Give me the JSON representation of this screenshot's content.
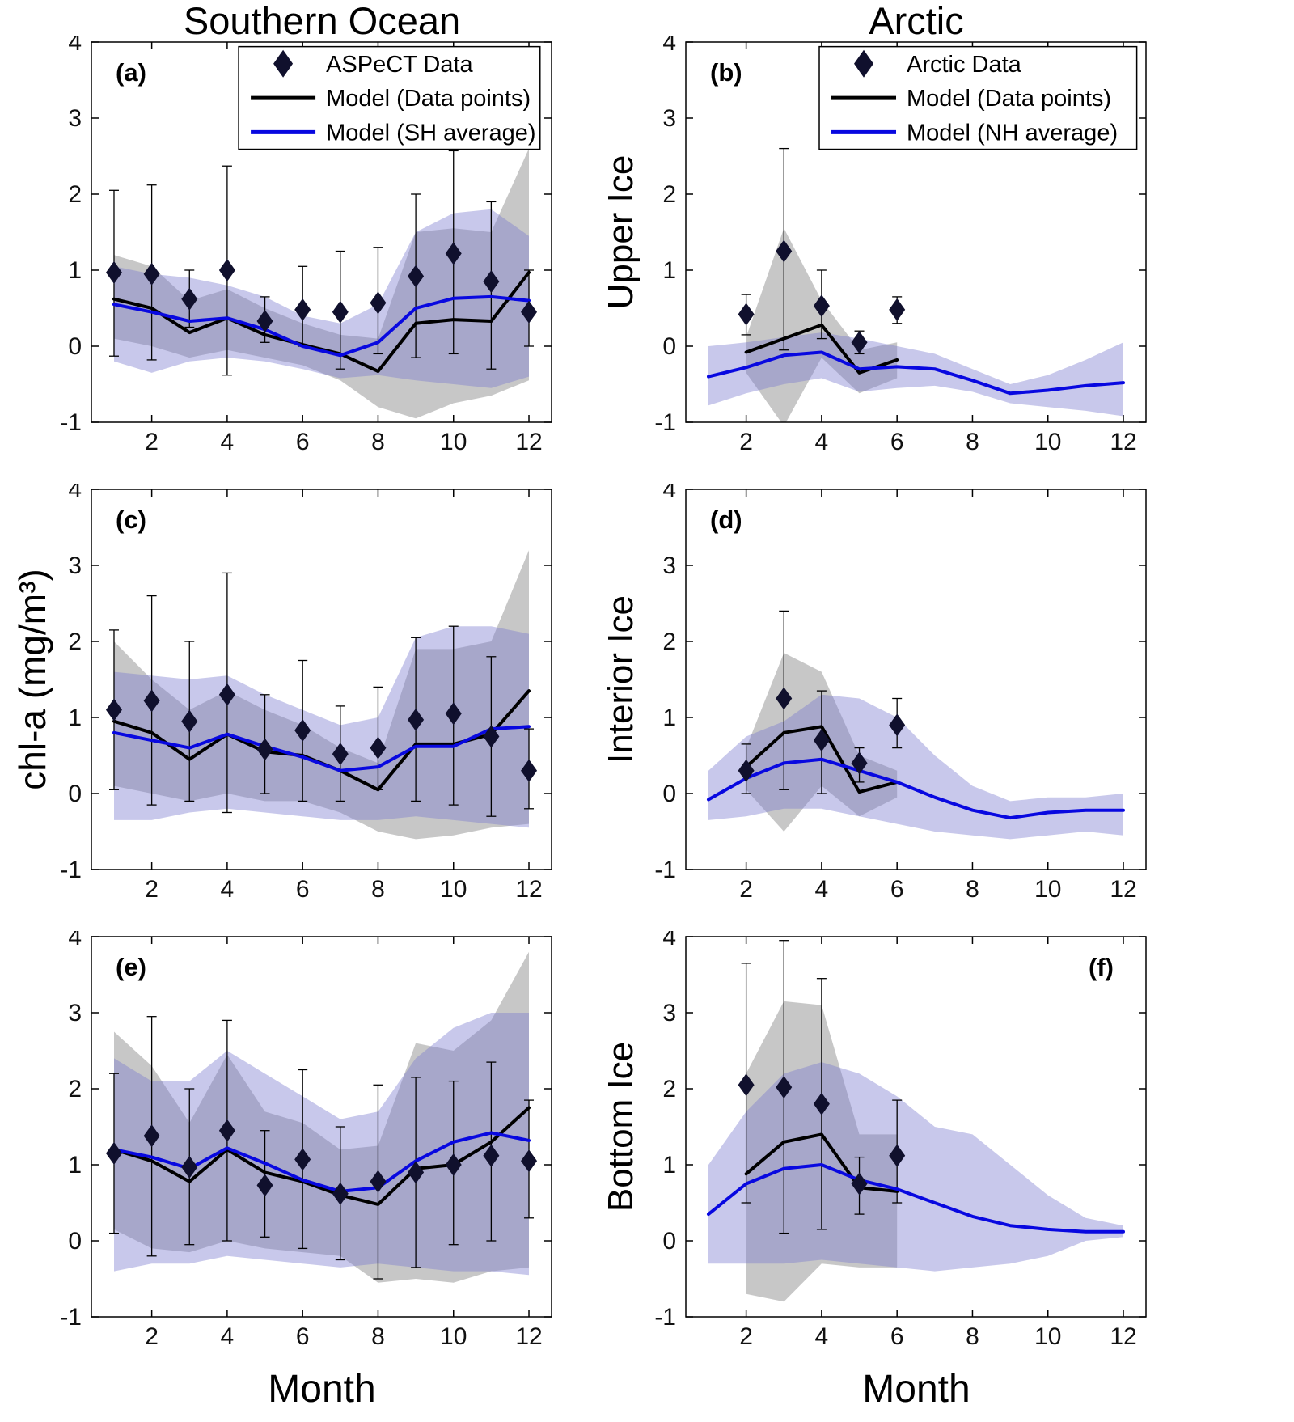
{
  "figure": {
    "titles": {
      "left": "Southern Ocean",
      "right": "Arctic"
    },
    "ylabel": "chl-a (mg/m³)",
    "xlabel": "Month",
    "row_labels": [
      "Upper Ice",
      "Interior Ice",
      "Bottom Ice"
    ],
    "colors": {
      "model_line": "#000000",
      "avg_line": "#0808e0",
      "diamond": "#10102d",
      "gray_band": "#909090",
      "blue_band": "#7b7bd0",
      "axis": "#000000"
    }
  },
  "chart_data": [
    {
      "id": "a",
      "type": "line",
      "panel": "Southern Ocean - Upper Ice",
      "letter": "(a)",
      "letter_pos": "tl",
      "xlim": [
        0.4,
        12.6
      ],
      "ylim": [
        -1,
        4
      ],
      "xticks": [
        2,
        4,
        6,
        8,
        10,
        12
      ],
      "yticks": [
        -1,
        0,
        1,
        2,
        3,
        4
      ],
      "legend": {
        "box": [
          0.32,
          0.012,
          0.655,
          0.27
        ],
        "entries": [
          {
            "marker": "diamond",
            "label": "ASPeCT Data"
          },
          {
            "marker": "line-black",
            "label": "Model (Data points)"
          },
          {
            "marker": "line-blue",
            "label": "Model (SH average)"
          }
        ]
      },
      "obs": {
        "x": [
          1,
          2,
          3,
          4,
          5,
          6,
          7,
          8,
          9,
          10,
          11,
          12
        ],
        "y": [
          0.97,
          0.95,
          0.62,
          1.0,
          0.33,
          0.48,
          0.45,
          0.57,
          0.92,
          1.22,
          0.85,
          0.45
        ],
        "err_hi": [
          2.05,
          2.12,
          1.0,
          2.37,
          0.65,
          1.05,
          1.25,
          1.3,
          2.0,
          2.57,
          1.9,
          1.0
        ],
        "err_lo": [
          -0.13,
          -0.18,
          0.25,
          -0.38,
          0.05,
          0.0,
          -0.3,
          -0.1,
          -0.15,
          -0.1,
          -0.3,
          0.0
        ]
      },
      "model": {
        "x": [
          1,
          2,
          3,
          4,
          5,
          6,
          7,
          8,
          9,
          10,
          11,
          12
        ],
        "y": [
          0.62,
          0.5,
          0.18,
          0.37,
          0.15,
          0.02,
          -0.1,
          -0.33,
          0.3,
          0.35,
          0.33,
          0.97
        ]
      },
      "avg": {
        "x": [
          1,
          2,
          3,
          4,
          5,
          6,
          7,
          8,
          9,
          10,
          11,
          12
        ],
        "y": [
          0.55,
          0.45,
          0.33,
          0.37,
          0.22,
          0.0,
          -0.12,
          0.05,
          0.5,
          0.63,
          0.65,
          0.6
        ]
      },
      "gray_band": {
        "x": [
          1,
          2,
          3,
          4,
          5,
          6,
          7,
          8,
          9,
          10,
          11,
          12
        ],
        "hi": [
          1.2,
          1.05,
          0.6,
          0.75,
          0.5,
          0.3,
          0.15,
          0.1,
          1.5,
          1.55,
          1.5,
          2.6
        ],
        "lo": [
          0.1,
          0.0,
          -0.15,
          -0.05,
          -0.15,
          -0.25,
          -0.45,
          -0.8,
          -0.95,
          -0.75,
          -0.65,
          -0.45
        ]
      },
      "blue_band": {
        "x": [
          1,
          2,
          3,
          4,
          5,
          6,
          7,
          8,
          9,
          10,
          11,
          12
        ],
        "hi": [
          1.05,
          0.95,
          0.9,
          0.8,
          0.65,
          0.4,
          0.3,
          0.55,
          1.5,
          1.75,
          1.8,
          1.45
        ],
        "lo": [
          -0.2,
          -0.35,
          -0.2,
          -0.15,
          -0.2,
          -0.3,
          -0.42,
          -0.38,
          -0.45,
          -0.5,
          -0.55,
          -0.4
        ]
      }
    },
    {
      "id": "b",
      "type": "line",
      "panel": "Arctic - Upper Ice",
      "letter": "(b)",
      "letter_pos": "tl",
      "xlim": [
        0.4,
        12.6
      ],
      "ylim": [
        -1,
        4
      ],
      "xticks": [
        2,
        4,
        6,
        8,
        10,
        12
      ],
      "yticks": [
        -1,
        0,
        1,
        2,
        3,
        4
      ],
      "legend": {
        "box": [
          0.29,
          0.012,
          0.69,
          0.27
        ],
        "entries": [
          {
            "marker": "diamond",
            "label": "Arctic Data"
          },
          {
            "marker": "line-black",
            "label": "Model (Data points)"
          },
          {
            "marker": "line-blue",
            "label": "Model (NH average)"
          }
        ]
      },
      "obs": {
        "x": [
          2,
          3,
          4,
          5,
          6
        ],
        "y": [
          0.42,
          1.25,
          0.53,
          0.05,
          0.48
        ],
        "err_hi": [
          0.68,
          2.6,
          1.0,
          0.2,
          0.65
        ],
        "err_lo": [
          0.15,
          -0.05,
          0.1,
          -0.1,
          0.3
        ]
      },
      "model": {
        "x": [
          2,
          3,
          4,
          5,
          6
        ],
        "y": [
          -0.08,
          0.1,
          0.28,
          -0.35,
          -0.18
        ]
      },
      "avg": {
        "x": [
          1,
          2,
          3,
          4,
          5,
          6,
          7,
          8,
          9,
          10,
          11,
          12
        ],
        "y": [
          -0.4,
          -0.28,
          -0.12,
          -0.08,
          -0.3,
          -0.27,
          -0.3,
          -0.45,
          -0.62,
          -0.58,
          -0.52,
          -0.48
        ]
      },
      "gray_band": {
        "x": [
          2,
          3,
          4,
          5,
          6
        ],
        "hi": [
          0.12,
          1.55,
          0.6,
          -0.05,
          0.05
        ],
        "lo": [
          -0.35,
          -1.05,
          -0.15,
          -0.62,
          -0.42
        ]
      },
      "blue_band": {
        "x": [
          1,
          2,
          3,
          4,
          5,
          6,
          7,
          8,
          9,
          10,
          11,
          12
        ],
        "hi": [
          0.0,
          0.05,
          0.12,
          0.18,
          0.1,
          0.0,
          -0.1,
          -0.3,
          -0.5,
          -0.38,
          -0.18,
          0.05
        ],
        "lo": [
          -0.78,
          -0.62,
          -0.5,
          -0.42,
          -0.6,
          -0.55,
          -0.52,
          -0.6,
          -0.75,
          -0.8,
          -0.85,
          -0.92
        ]
      }
    },
    {
      "id": "c",
      "type": "line",
      "panel": "Southern Ocean - Interior Ice",
      "letter": "(c)",
      "letter_pos": "tl",
      "xlim": [
        0.4,
        12.6
      ],
      "ylim": [
        -1,
        4
      ],
      "xticks": [
        2,
        4,
        6,
        8,
        10,
        12
      ],
      "yticks": [
        -1,
        0,
        1,
        2,
        3,
        4
      ],
      "obs": {
        "x": [
          1,
          2,
          3,
          4,
          5,
          6,
          7,
          8,
          9,
          10,
          11,
          12
        ],
        "y": [
          1.1,
          1.22,
          0.95,
          1.3,
          0.58,
          0.83,
          0.52,
          0.6,
          0.97,
          1.05,
          0.75,
          0.3
        ],
        "err_hi": [
          2.15,
          2.6,
          2.0,
          2.9,
          1.3,
          1.75,
          1.15,
          1.4,
          2.05,
          2.2,
          1.8,
          0.85
        ],
        "err_lo": [
          0.05,
          -0.15,
          -0.1,
          -0.25,
          0.0,
          -0.1,
          -0.1,
          0.05,
          -0.1,
          -0.15,
          -0.3,
          -0.2
        ]
      },
      "model": {
        "x": [
          1,
          2,
          3,
          4,
          5,
          6,
          7,
          8,
          9,
          10,
          11,
          12
        ],
        "y": [
          0.95,
          0.8,
          0.45,
          0.78,
          0.55,
          0.5,
          0.3,
          0.05,
          0.65,
          0.65,
          0.78,
          1.35
        ]
      },
      "avg": {
        "x": [
          1,
          2,
          3,
          4,
          5,
          6,
          7,
          8,
          9,
          10,
          11,
          12
        ],
        "y": [
          0.8,
          0.7,
          0.6,
          0.78,
          0.62,
          0.48,
          0.3,
          0.35,
          0.62,
          0.62,
          0.85,
          0.88
        ]
      },
      "gray_band": {
        "x": [
          1,
          2,
          3,
          4,
          5,
          6,
          7,
          8,
          9,
          10,
          11,
          12
        ],
        "hi": [
          2.0,
          1.5,
          1.1,
          1.35,
          1.1,
          0.9,
          0.6,
          0.4,
          1.9,
          1.9,
          2.0,
          3.2
        ],
        "lo": [
          0.1,
          0.0,
          -0.1,
          0.0,
          -0.1,
          -0.1,
          -0.25,
          -0.5,
          -0.6,
          -0.55,
          -0.45,
          -0.4
        ]
      },
      "blue_band": {
        "x": [
          1,
          2,
          3,
          4,
          5,
          6,
          7,
          8,
          9,
          10,
          11,
          12
        ],
        "hi": [
          1.6,
          1.55,
          1.5,
          1.55,
          1.3,
          1.1,
          0.9,
          1.0,
          2.05,
          2.2,
          2.2,
          2.1
        ],
        "lo": [
          -0.35,
          -0.35,
          -0.25,
          -0.2,
          -0.25,
          -0.3,
          -0.35,
          -0.35,
          -0.3,
          -0.35,
          -0.4,
          -0.45
        ]
      }
    },
    {
      "id": "d",
      "type": "line",
      "panel": "Arctic - Interior Ice",
      "letter": "(d)",
      "letter_pos": "tl",
      "xlim": [
        0.4,
        12.6
      ],
      "ylim": [
        -1,
        4
      ],
      "xticks": [
        2,
        4,
        6,
        8,
        10,
        12
      ],
      "yticks": [
        -1,
        0,
        1,
        2,
        3,
        4
      ],
      "obs": {
        "x": [
          2,
          3,
          4,
          5,
          6
        ],
        "y": [
          0.3,
          1.25,
          0.7,
          0.4,
          0.9
        ],
        "err_hi": [
          0.65,
          2.4,
          1.35,
          0.6,
          1.25
        ],
        "err_lo": [
          0.0,
          0.05,
          0.0,
          0.15,
          0.6
        ]
      },
      "model": {
        "x": [
          2,
          3,
          4,
          5,
          6
        ],
        "y": [
          0.35,
          0.8,
          0.88,
          0.02,
          0.15
        ]
      },
      "avg": {
        "x": [
          1,
          2,
          3,
          4,
          5,
          6,
          7,
          8,
          9,
          10,
          11,
          12
        ],
        "y": [
          -0.08,
          0.2,
          0.4,
          0.45,
          0.3,
          0.15,
          -0.05,
          -0.22,
          -0.32,
          -0.25,
          -0.22,
          -0.22
        ]
      },
      "gray_band": {
        "x": [
          2,
          3,
          4,
          5,
          6
        ],
        "hi": [
          0.6,
          1.85,
          1.6,
          0.5,
          0.3
        ],
        "lo": [
          0.05,
          -0.5,
          0.1,
          -0.3,
          -0.05
        ]
      },
      "blue_band": {
        "x": [
          1,
          2,
          3,
          4,
          5,
          6,
          7,
          8,
          9,
          10,
          11,
          12
        ],
        "hi": [
          0.3,
          0.75,
          0.95,
          1.3,
          1.25,
          1.0,
          0.5,
          0.1,
          -0.1,
          -0.05,
          -0.05,
          0.0
        ],
        "lo": [
          -0.35,
          -0.3,
          -0.2,
          -0.2,
          -0.3,
          -0.4,
          -0.5,
          -0.55,
          -0.6,
          -0.55,
          -0.5,
          -0.55
        ]
      }
    },
    {
      "id": "e",
      "type": "line",
      "panel": "Southern Ocean - Bottom Ice",
      "letter": "(e)",
      "letter_pos": "tl",
      "xlim": [
        0.4,
        12.6
      ],
      "ylim": [
        -1,
        4
      ],
      "xticks": [
        2,
        4,
        6,
        8,
        10,
        12
      ],
      "yticks": [
        -1,
        0,
        1,
        2,
        3,
        4
      ],
      "obs": {
        "x": [
          1,
          2,
          3,
          4,
          5,
          6,
          7,
          8,
          9,
          10,
          11,
          12
        ],
        "y": [
          1.15,
          1.38,
          0.97,
          1.45,
          0.73,
          1.07,
          0.62,
          0.78,
          0.9,
          1.0,
          1.12,
          1.05
        ],
        "err_hi": [
          2.2,
          2.95,
          2.0,
          2.9,
          1.45,
          2.25,
          1.5,
          2.05,
          2.15,
          2.1,
          2.35,
          1.85
        ],
        "err_lo": [
          0.1,
          -0.2,
          -0.05,
          0.0,
          0.05,
          -0.1,
          -0.25,
          -0.5,
          -0.35,
          -0.05,
          0.0,
          0.3
        ]
      },
      "model": {
        "x": [
          1,
          2,
          3,
          4,
          5,
          6,
          7,
          8,
          9,
          10,
          11,
          12
        ],
        "y": [
          1.2,
          1.05,
          0.78,
          1.2,
          0.9,
          0.78,
          0.6,
          0.48,
          0.95,
          1.0,
          1.3,
          1.75
        ]
      },
      "avg": {
        "x": [
          1,
          2,
          3,
          4,
          5,
          6,
          7,
          8,
          9,
          10,
          11,
          12
        ],
        "y": [
          1.2,
          1.1,
          0.95,
          1.22,
          1.02,
          0.8,
          0.65,
          0.7,
          1.05,
          1.3,
          1.42,
          1.32
        ]
      },
      "gray_band": {
        "x": [
          1,
          2,
          3,
          4,
          5,
          6,
          7,
          8,
          9,
          10,
          11,
          12
        ],
        "hi": [
          2.75,
          2.3,
          1.55,
          2.45,
          1.7,
          1.55,
          1.2,
          1.25,
          2.6,
          2.5,
          2.9,
          3.8
        ],
        "lo": [
          0.15,
          -0.1,
          -0.15,
          0.0,
          -0.1,
          -0.15,
          -0.2,
          -0.55,
          -0.5,
          -0.55,
          -0.4,
          -0.35
        ]
      },
      "blue_band": {
        "x": [
          1,
          2,
          3,
          4,
          5,
          6,
          7,
          8,
          9,
          10,
          11,
          12
        ],
        "hi": [
          2.4,
          2.1,
          2.1,
          2.5,
          2.2,
          1.9,
          1.6,
          1.7,
          2.4,
          2.8,
          3.0,
          3.0
        ],
        "lo": [
          -0.4,
          -0.3,
          -0.3,
          -0.2,
          -0.25,
          -0.3,
          -0.35,
          -0.3,
          -0.35,
          -0.4,
          -0.4,
          -0.45
        ]
      }
    },
    {
      "id": "f",
      "type": "line",
      "panel": "Arctic - Bottom Ice",
      "letter": "(f)",
      "letter_pos": "tr",
      "xlim": [
        0.4,
        12.6
      ],
      "ylim": [
        -1,
        4
      ],
      "xticks": [
        2,
        4,
        6,
        8,
        10,
        12
      ],
      "yticks": [
        -1,
        0,
        1,
        2,
        3,
        4
      ],
      "obs": {
        "x": [
          2,
          3,
          4,
          5,
          6
        ],
        "y": [
          2.05,
          2.02,
          1.8,
          0.75,
          1.12
        ],
        "err_hi": [
          3.65,
          3.95,
          3.45,
          1.1,
          1.85
        ],
        "err_lo": [
          0.5,
          0.1,
          0.15,
          0.35,
          0.5
        ]
      },
      "model": {
        "x": [
          2,
          3,
          4,
          5,
          6
        ],
        "y": [
          0.88,
          1.3,
          1.4,
          0.7,
          0.65
        ]
      },
      "avg": {
        "x": [
          1,
          2,
          3,
          4,
          5,
          6,
          7,
          8,
          9,
          10,
          11,
          12
        ],
        "y": [
          0.35,
          0.75,
          0.95,
          1.0,
          0.8,
          0.68,
          0.5,
          0.32,
          0.2,
          0.15,
          0.12,
          0.12
        ]
      },
      "gray_band": {
        "x": [
          2,
          3,
          4,
          5,
          6
        ],
        "hi": [
          2.2,
          3.15,
          3.1,
          1.4,
          1.4
        ],
        "lo": [
          -0.7,
          -0.8,
          -0.3,
          -0.35,
          -0.35
        ]
      },
      "blue_band": {
        "x": [
          1,
          2,
          3,
          4,
          5,
          6,
          7,
          8,
          9,
          10,
          11,
          12
        ],
        "hi": [
          1.0,
          1.7,
          2.2,
          2.35,
          2.2,
          1.9,
          1.5,
          1.4,
          1.0,
          0.6,
          0.3,
          0.2
        ],
        "lo": [
          -0.3,
          -0.3,
          -0.3,
          -0.25,
          -0.3,
          -0.35,
          -0.4,
          -0.35,
          -0.3,
          -0.2,
          0.0,
          0.05
        ]
      }
    }
  ]
}
